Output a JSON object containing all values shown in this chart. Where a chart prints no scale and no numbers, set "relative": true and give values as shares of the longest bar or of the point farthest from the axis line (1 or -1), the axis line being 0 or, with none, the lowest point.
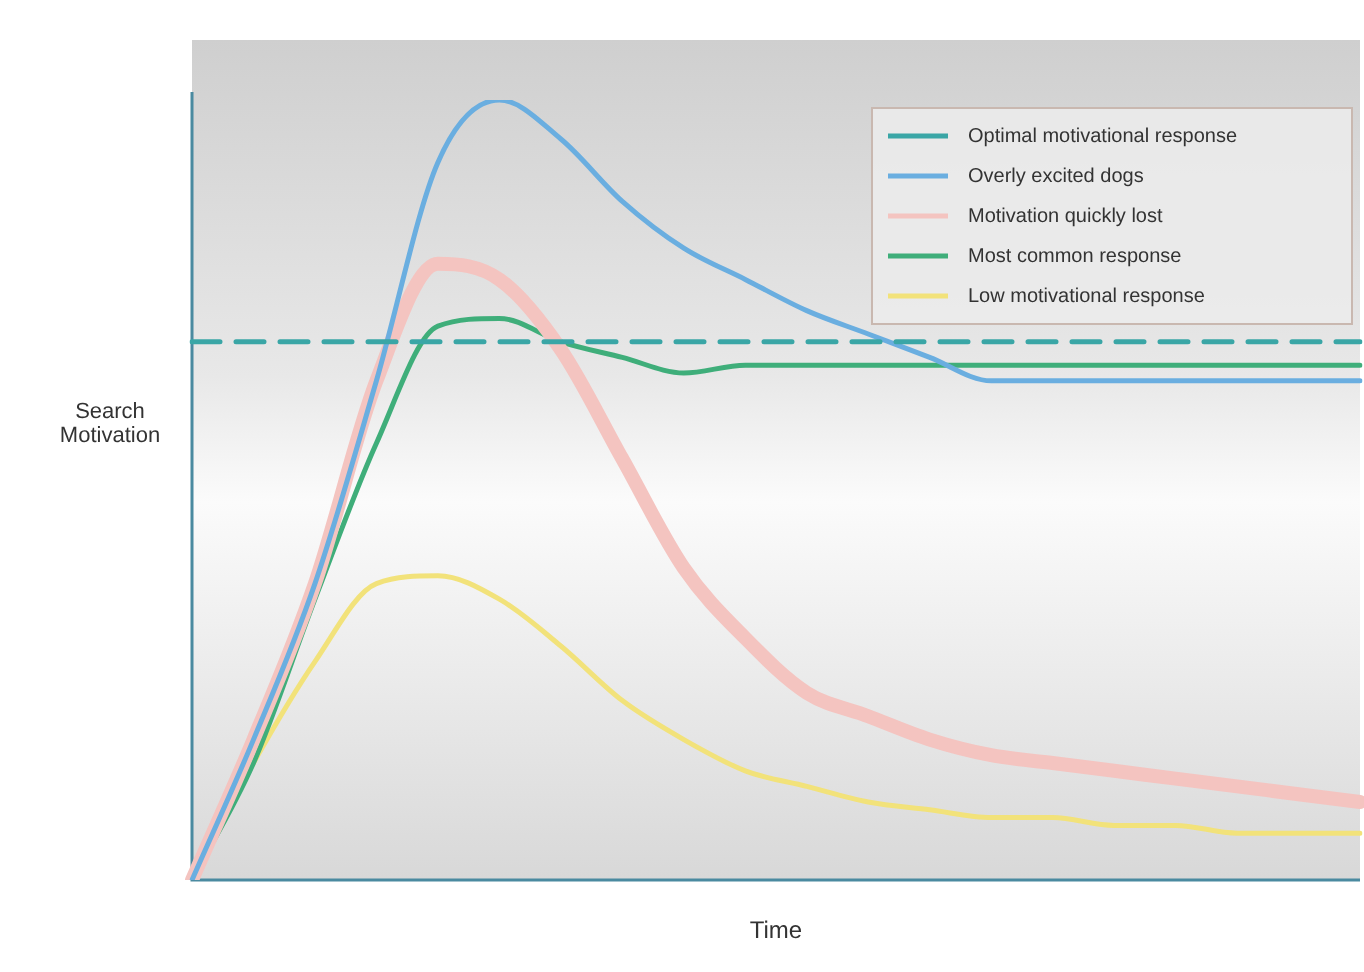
{
  "chart_data": {
    "type": "line",
    "relative": true,
    "xlabel": "Time",
    "ylabel": "Search\nMotivation",
    "legend": "top right",
    "grid": false,
    "tick_labels": false,
    "marker": "none",
    "categories": [
      null,
      null,
      null,
      null,
      null,
      null,
      null,
      null,
      null,
      null,
      null,
      null,
      null,
      null,
      null,
      null,
      null,
      null,
      null,
      null
    ],
    "series": [
      {
        "name": "Optimal motivational response",
        "color": "#3aa6a6",
        "line_style": "dashed",
        "values": [
          0.69,
          0.69,
          0.69,
          0.69,
          0.69,
          0.69,
          0.69,
          0.69,
          0.69,
          0.69,
          0.69,
          0.69,
          0.69,
          0.69,
          0.69,
          0.69,
          0.69,
          0.69,
          0.69,
          0.69
        ]
      },
      {
        "name": "Overly excited dogs",
        "color": "#6aaee0",
        "values": [
          0,
          0.18,
          0.38,
          0.64,
          0.92,
          1,
          0.95,
          0.87,
          0.81,
          0.77,
          0.73,
          0.7,
          0.67,
          0.64,
          0.64,
          0.64,
          0.64,
          0.64,
          0.64,
          0.64
        ]
      },
      {
        "name": "Motivation quickly lost",
        "color": "#f4c4c0",
        "values": [
          0,
          0.18,
          0.38,
          0.64,
          0.79,
          0.77,
          0.68,
          0.54,
          0.4,
          0.31,
          0.24,
          0.21,
          0.18,
          0.16,
          0.15,
          0.14,
          0.13,
          0.12,
          0.11,
          0.1
        ]
      },
      {
        "name": "Most common response",
        "color": "#3fae7a",
        "values": [
          0,
          0.15,
          0.36,
          0.56,
          0.71,
          0.72,
          0.69,
          0.67,
          0.65,
          0.66,
          0.66,
          0.66,
          0.66,
          0.66,
          0.66,
          0.66,
          0.66,
          0.66,
          0.66,
          0.66
        ]
      },
      {
        "name": "Low motivational response",
        "color": "#f2e27a",
        "values": [
          0,
          0.15,
          0.28,
          0.38,
          0.39,
          0.36,
          0.3,
          0.23,
          0.18,
          0.14,
          0.12,
          0.1,
          0.09,
          0.08,
          0.08,
          0.07,
          0.07,
          0.06,
          0.06,
          0.06
        ]
      }
    ]
  }
}
